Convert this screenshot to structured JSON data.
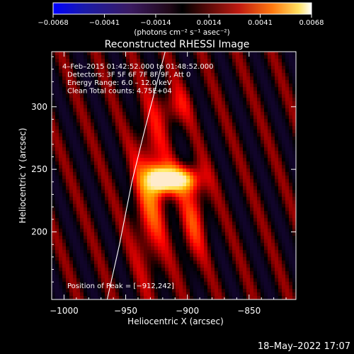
{
  "chart_data": {
    "type": "heatmap",
    "title": "Reconstructed RHESSI Image",
    "xlabel": "Heliocentric X (arcsec)",
    "ylabel": "Heliocentric Y (arcsec)",
    "xlim": [
      -1010,
      -812
    ],
    "ylim": [
      146,
      344
    ],
    "x_ticks": [
      -1000,
      -950,
      -900,
      -850
    ],
    "x_tick_labels": [
      "−1000",
      "−950",
      "−900",
      "−850"
    ],
    "y_ticks": [
      200,
      250,
      300
    ],
    "y_tick_labels": [
      "200",
      "250",
      "300"
    ],
    "colorbar": {
      "range": [
        -0.0068,
        0.0068
      ],
      "ticks": [
        -0.0068,
        -0.0041,
        -0.0014,
        0.0014,
        0.0041,
        0.0068
      ],
      "tick_labels": [
        "−0.0068",
        "−0.0041",
        "−0.0014",
        "0.0014",
        "0.0041",
        "0.0068"
      ],
      "unit_label": "(photons cm⁻² s⁻¹ asec⁻²)",
      "colormap": "hot-with-blue-negative"
    },
    "annotations": [
      "4–Feb–2015 01:42:52.000 to 01:48:52.000",
      "Detectors: 3F 5F 6F 7F 8F 9F, Att 0",
      "Energy Range: 6.0 – 12.0 keV",
      "Clean     Total counts: 4.75E+04"
    ],
    "peak_label": "Position of Peak = [−912,242]",
    "peak": [
      -912,
      242
    ],
    "limb_curve": [
      [
        -965,
        146
      ],
      [
        -955,
        190
      ],
      [
        -945,
        240
      ],
      [
        -935,
        280
      ],
      [
        -925,
        318
      ],
      [
        -918,
        344
      ]
    ],
    "sources": [
      {
        "x": -912,
        "y": 242,
        "sx": 14,
        "sy": 8,
        "amp": 1.0
      },
      {
        "x": -930,
        "y": 230,
        "sx": 10,
        "sy": 45,
        "amp": 0.55
      },
      {
        "x": -895,
        "y": 210,
        "sx": 8,
        "sy": 25,
        "amp": 0.45
      },
      {
        "x": -910,
        "y": 300,
        "sx": 10,
        "sy": 12,
        "amp": 0.35
      }
    ]
  },
  "footer": {
    "timestamp": "18–May–2022 17:07"
  }
}
